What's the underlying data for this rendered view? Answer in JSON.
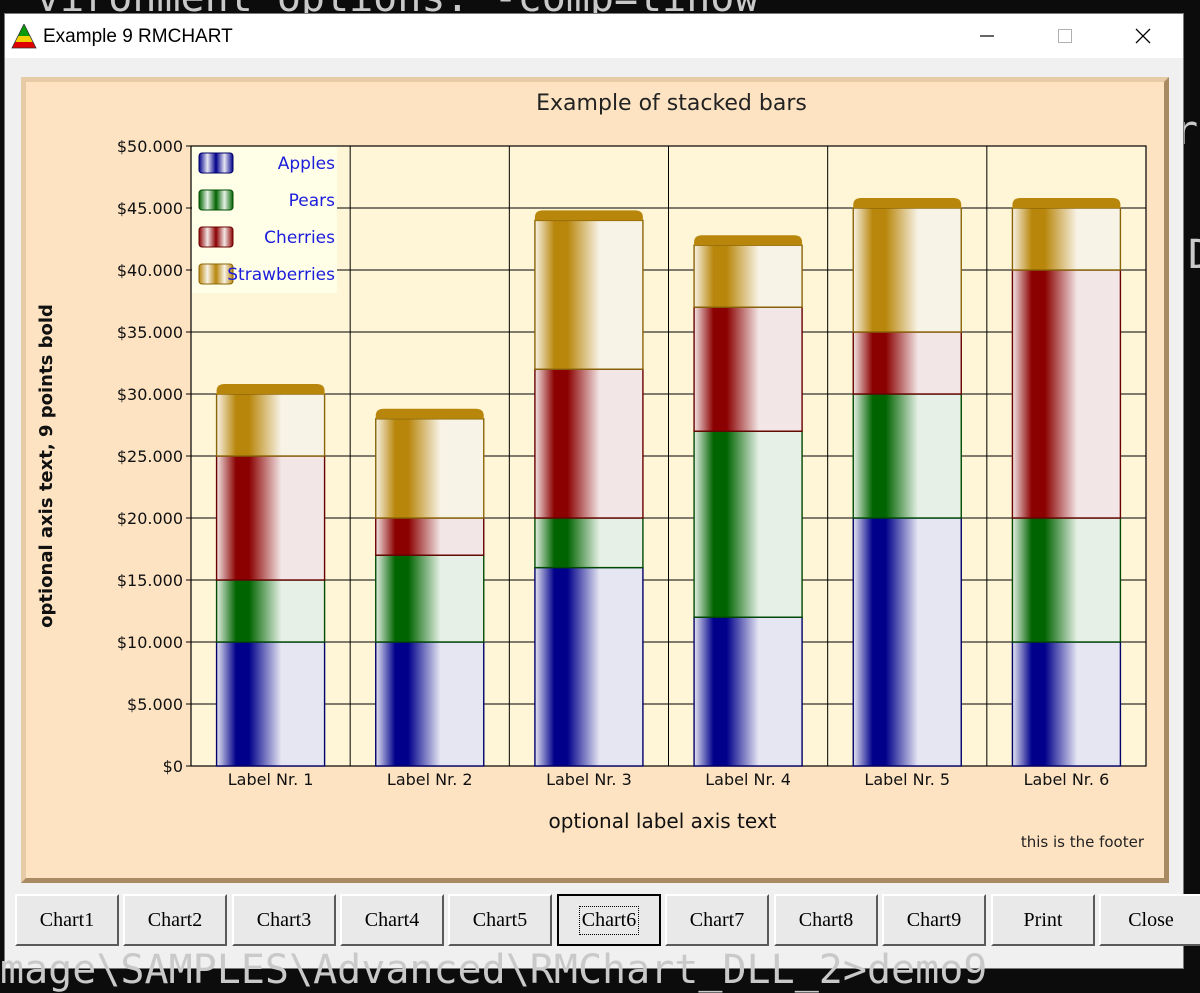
{
  "console": {
    "top_line": "vironment options: -comp=tinow",
    "bottom_line": "mage\\SAMPLES\\Advanced\\RMChart_DLL_2>demo9",
    "right_frag_1": "re",
    "right_frag_2": "D"
  },
  "window": {
    "title": "Example 9 RMCHART",
    "icons": {
      "app": "rmchart-triangle-icon",
      "minimize": "minimize-icon",
      "maximize": "maximize-icon",
      "close": "close-icon"
    }
  },
  "chart_data": {
    "type": "bar",
    "stacked": true,
    "title": "Example of stacked bars",
    "xlabel": "optional label axis text",
    "ylabel": "optional axis text, 9 points bold",
    "footer": "this is the footer",
    "categories": [
      "Label Nr. 1",
      "Label Nr. 2",
      "Label Nr. 3",
      "Label Nr. 4",
      "Label Nr. 5",
      "Label Nr. 6"
    ],
    "series": [
      {
        "name": "Apples",
        "values": [
          10000,
          10000,
          16000,
          12000,
          20000,
          10000
        ],
        "color": "#00008b"
      },
      {
        "name": "Pears",
        "values": [
          5000,
          7000,
          4000,
          15000,
          10000,
          10000
        ],
        "color": "#006400"
      },
      {
        "name": "Cherries",
        "values": [
          10000,
          3000,
          12000,
          10000,
          5000,
          20000
        ],
        "color": "#8b0000"
      },
      {
        "name": "Strawberries",
        "values": [
          5000,
          8000,
          12000,
          5000,
          10000,
          5000
        ],
        "color": "#b8860b"
      }
    ],
    "ylim": [
      0,
      50000
    ],
    "y_ticks": [
      "$0",
      "$5.000",
      "$10.000",
      "$15.000",
      "$20.000",
      "$25.000",
      "$30.000",
      "$35.000",
      "$40.000",
      "$45.000",
      "$50.000"
    ],
    "grid": true,
    "legend_position": "top-left",
    "colors": {
      "background": "#fde3c2",
      "plot_area": "#fff6d8",
      "legend_bg": "#ffffe8",
      "legend_text": "#1c1cdc"
    }
  },
  "buttons": [
    {
      "label": "Chart1"
    },
    {
      "label": "Chart2"
    },
    {
      "label": "Chart3"
    },
    {
      "label": "Chart4"
    },
    {
      "label": "Chart5"
    },
    {
      "label": "Chart6",
      "active": true
    },
    {
      "label": "Chart7"
    },
    {
      "label": "Chart8"
    },
    {
      "label": "Chart9"
    },
    {
      "label": "Print"
    },
    {
      "label": "Close"
    }
  ]
}
